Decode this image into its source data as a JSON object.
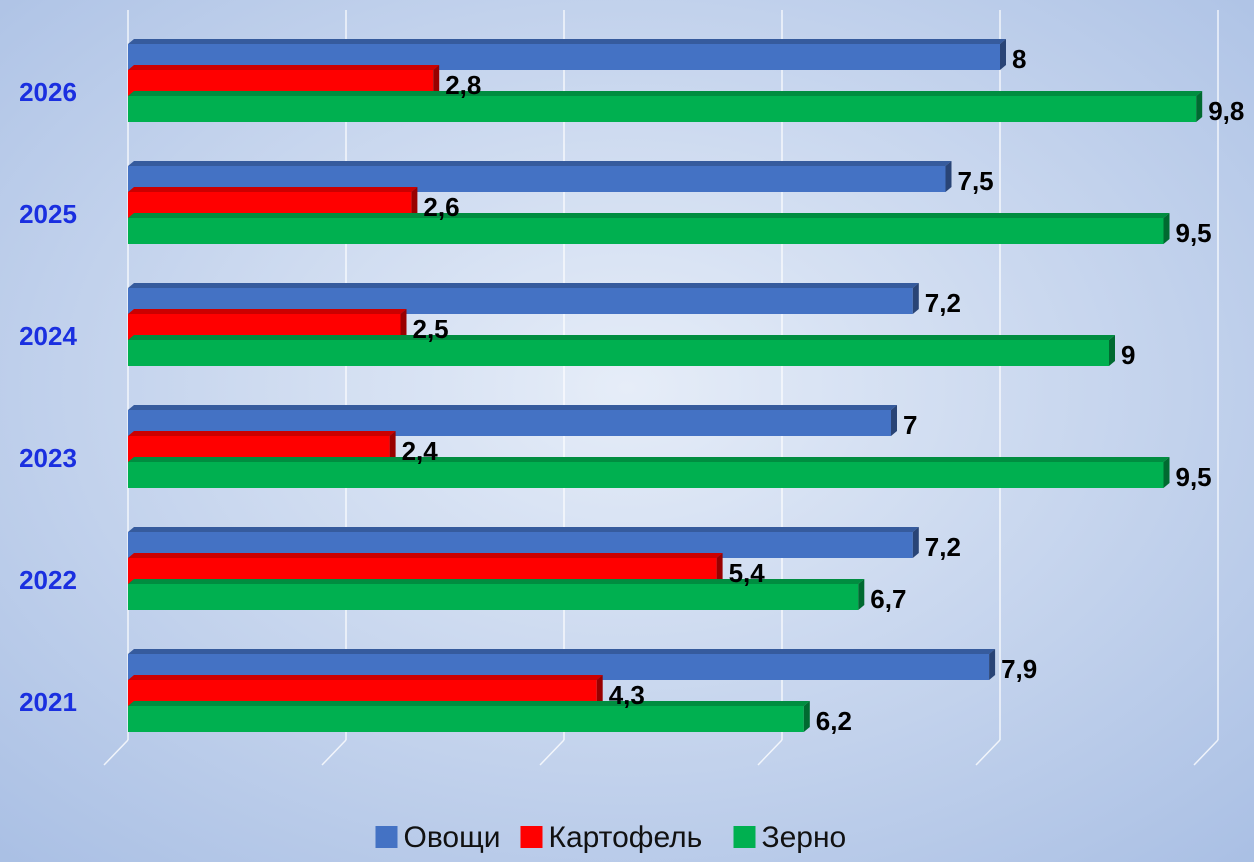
{
  "chart_data": {
    "type": "bar",
    "orientation": "horizontal",
    "categories": [
      "2026",
      "2025",
      "2024",
      "2023",
      "2022",
      "2021"
    ],
    "series": [
      {
        "name": "Овощи",
        "color": "#4472c4",
        "values": [
          8,
          7.5,
          7.2,
          7,
          7.2,
          7.9
        ],
        "value_labels": [
          "8",
          "7,5",
          "7,2",
          "7",
          "7,2",
          "7,9"
        ]
      },
      {
        "name": "Картофель",
        "color": "#ff0000",
        "values": [
          2.8,
          2.6,
          2.5,
          2.4,
          5.4,
          4.3
        ],
        "value_labels": [
          "2,8",
          "2,6",
          "2,5",
          "2,4",
          "5,4",
          "4,3"
        ]
      },
      {
        "name": "Зерно",
        "color": "#00b050",
        "values": [
          9.8,
          9.5,
          9,
          9.5,
          6.7,
          6.2
        ],
        "value_labels": [
          "9,8",
          "9,5",
          "9",
          "9,5",
          "6,7",
          "6,2"
        ]
      }
    ],
    "xlim": [
      0,
      10
    ],
    "xticks": [
      0,
      2,
      4,
      6,
      8,
      10
    ],
    "grid": true,
    "legend": "bottom"
  }
}
